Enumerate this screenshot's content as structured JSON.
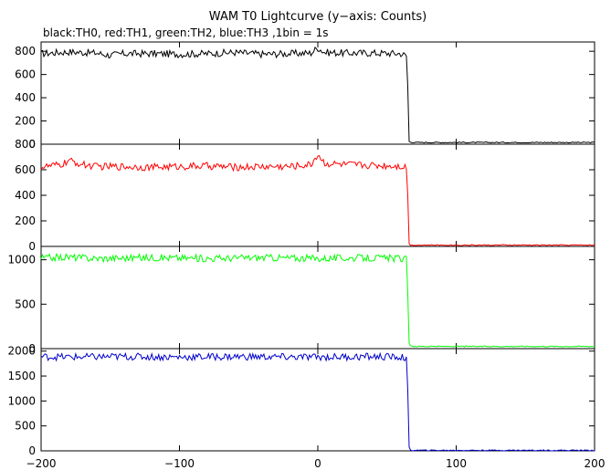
{
  "chart_data": {
    "type": "line",
    "title": "WAM T0 Lightcurve (y−axis: Counts)",
    "subtitle": "black:TH0, red:TH1, green:TH2, blue:TH3 ,1bin = 1s",
    "xlim": [
      -200,
      200
    ],
    "x_ticks": [
      "−200",
      "−100",
      "0",
      "100",
      "200"
    ],
    "x_tick_values": [
      -200,
      -100,
      0,
      100,
      200
    ],
    "panels": [
      {
        "name": "TH0",
        "color": "#000000",
        "ylim": [
          0,
          880
        ],
        "y_ticks": [
          "0",
          "200",
          "400",
          "600",
          "800"
        ],
        "y_tick_values": [
          0,
          200,
          400,
          600,
          800
        ],
        "x": [
          -200,
          -180,
          -160,
          -150,
          -140,
          -120,
          -100,
          -80,
          -60,
          -40,
          -20,
          -5,
          0,
          5,
          20,
          40,
          60,
          64,
          65,
          66,
          70,
          100,
          150,
          200
        ],
        "values": [
          780,
          795,
          785,
          765,
          780,
          780,
          775,
          780,
          790,
          775,
          780,
          785,
          830,
          790,
          785,
          785,
          780,
          760,
          500,
          20,
          15,
          15,
          15,
          15
        ]
      },
      {
        "name": "TH1",
        "color": "#ff0000",
        "ylim": [
          0,
          800
        ],
        "y_ticks": [
          "0",
          "200",
          "400",
          "600",
          "800"
        ],
        "y_tick_values": [
          0,
          200,
          400,
          600,
          800
        ],
        "x": [
          -200,
          -185,
          -180,
          -170,
          -160,
          -140,
          -120,
          -100,
          -80,
          -60,
          -40,
          -20,
          -5,
          0,
          5,
          20,
          40,
          60,
          64,
          65,
          66,
          70,
          100,
          150,
          200
        ],
        "values": [
          620,
          640,
          670,
          640,
          625,
          625,
          620,
          625,
          630,
          620,
          625,
          625,
          640,
          720,
          650,
          640,
          635,
          630,
          620,
          410,
          10,
          10,
          10,
          10,
          10
        ]
      },
      {
        "name": "TH2",
        "color": "#00ff00",
        "ylim": [
          0,
          1150
        ],
        "y_ticks": [
          "0",
          "500",
          "1000"
        ],
        "y_tick_values": [
          0,
          500,
          1000
        ],
        "x": [
          -200,
          -180,
          -160,
          -140,
          -120,
          -100,
          -80,
          -60,
          -40,
          -20,
          0,
          20,
          40,
          60,
          64,
          65,
          66,
          70,
          100,
          150,
          200
        ],
        "values": [
          1020,
          1030,
          1015,
          1020,
          1025,
          1020,
          1015,
          1020,
          1025,
          1020,
          1015,
          1020,
          1020,
          1015,
          1000,
          650,
          30,
          25,
          25,
          25,
          25
        ]
      },
      {
        "name": "TH3",
        "color": "#0000cc",
        "ylim": [
          0,
          2050
        ],
        "y_ticks": [
          "0",
          "500",
          "1000",
          "1500",
          "2000"
        ],
        "y_tick_values": [
          0,
          500,
          1000,
          1500,
          2000
        ],
        "x": [
          -200,
          -180,
          -160,
          -140,
          -120,
          -100,
          -80,
          -60,
          -40,
          -20,
          0,
          20,
          40,
          60,
          64,
          65,
          66,
          70,
          100,
          150,
          200
        ],
        "values": [
          1890,
          1880,
          1885,
          1890,
          1885,
          1880,
          1885,
          1890,
          1885,
          1880,
          1880,
          1885,
          1890,
          1880,
          1860,
          1150,
          10,
          10,
          10,
          10,
          10
        ]
      }
    ]
  }
}
